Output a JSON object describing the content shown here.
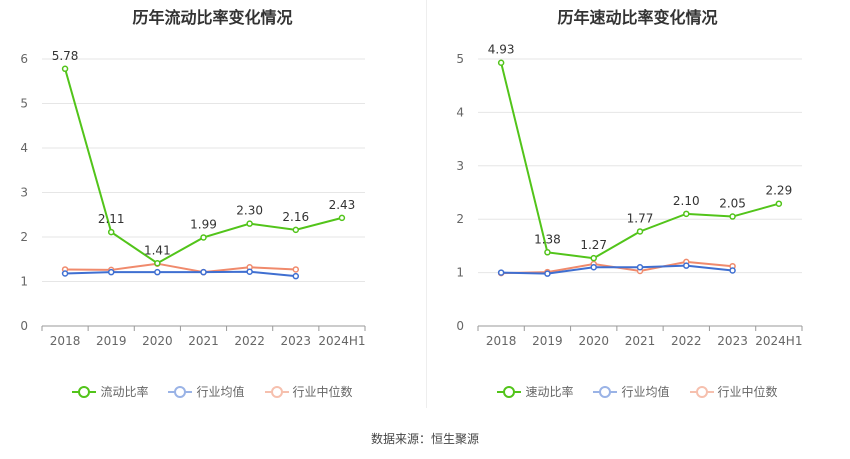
{
  "source_text": "数据来源：恒生聚源",
  "chart_data": [
    {
      "type": "line",
      "title": "历年流动比率变化情况",
      "categories": [
        "2018",
        "2019",
        "2020",
        "2021",
        "2022",
        "2023",
        "2024H1"
      ],
      "ylim": [
        0,
        6
      ],
      "yticks": [
        0,
        1,
        2,
        3,
        4,
        5,
        6
      ],
      "grid": true,
      "legend_position": "bottom",
      "series": [
        {
          "name": "流动比率",
          "color": "#52c41a",
          "values": [
            5.78,
            2.11,
            1.41,
            1.99,
            2.3,
            2.16,
            2.43
          ],
          "labels": [
            "5.78",
            "2.11",
            "1.41",
            "1.99",
            "2.30",
            "2.16",
            "2.43"
          ]
        },
        {
          "name": "行业均值",
          "color": "#3f6fd1",
          "values": [
            1.18,
            1.21,
            1.21,
            1.21,
            1.22,
            1.12,
            null
          ]
        },
        {
          "name": "行业中位数",
          "color": "#f08a6c",
          "values": [
            1.27,
            1.26,
            1.4,
            1.21,
            1.32,
            1.27,
            null
          ]
        }
      ]
    },
    {
      "type": "line",
      "title": "历年速动比率变化情况",
      "categories": [
        "2018",
        "2019",
        "2020",
        "2021",
        "2022",
        "2023",
        "2024H1"
      ],
      "ylim": [
        0,
        5
      ],
      "yticks": [
        0,
        1,
        2,
        3,
        4,
        5
      ],
      "grid": true,
      "legend_position": "bottom",
      "series": [
        {
          "name": "速动比率",
          "color": "#52c41a",
          "values": [
            4.93,
            1.38,
            1.27,
            1.77,
            2.1,
            2.05,
            2.29
          ],
          "labels": [
            "4.93",
            "1.38",
            "1.27",
            "1.77",
            "2.10",
            "2.05",
            "2.29"
          ]
        },
        {
          "name": "行业均值",
          "color": "#3f6fd1",
          "values": [
            1.0,
            0.98,
            1.1,
            1.1,
            1.13,
            1.04,
            null
          ]
        },
        {
          "name": "行业中位数",
          "color": "#f08a6c",
          "values": [
            0.99,
            1.01,
            1.16,
            1.03,
            1.2,
            1.12,
            null
          ]
        }
      ]
    }
  ]
}
